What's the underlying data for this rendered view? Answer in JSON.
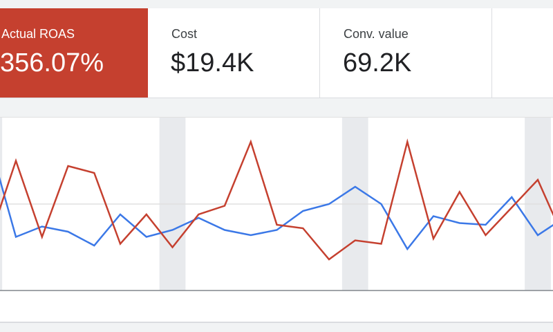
{
  "scorecards": [
    {
      "label": "Actual ROAS",
      "value": "356.07%",
      "active": true
    },
    {
      "label": "Cost",
      "value": "$19.4K",
      "active": false
    },
    {
      "label": "Conv. value",
      "value": "69.2K",
      "active": false
    },
    {
      "label": "",
      "value": "",
      "active": false
    }
  ],
  "colors": {
    "roas": "#c5402f",
    "series_blue": "#3b78e7",
    "weekend": "#e8eaed"
  },
  "chart_data": {
    "type": "line",
    "title": "",
    "xlabel": "",
    "ylabel": "",
    "ylim": [
      0,
      100
    ],
    "grid": true,
    "weekend_band_indices": [
      0,
      7,
      14,
      21
    ],
    "series": [
      {
        "name": "Actual ROAS",
        "color": "#c5402f",
        "values": [
          30,
          75,
          31,
          72,
          68,
          27,
          44,
          25,
          44,
          49,
          86,
          38,
          36,
          18,
          29,
          27,
          86,
          30,
          57,
          32,
          48,
          64,
          30
        ]
      },
      {
        "name": "Cost",
        "color": "#3b78e7",
        "values": [
          85,
          31,
          37,
          34,
          26,
          44,
          31,
          35,
          42,
          35,
          32,
          35,
          46,
          50,
          60,
          50,
          24,
          43,
          39,
          38,
          54,
          32,
          42
        ]
      }
    ]
  }
}
